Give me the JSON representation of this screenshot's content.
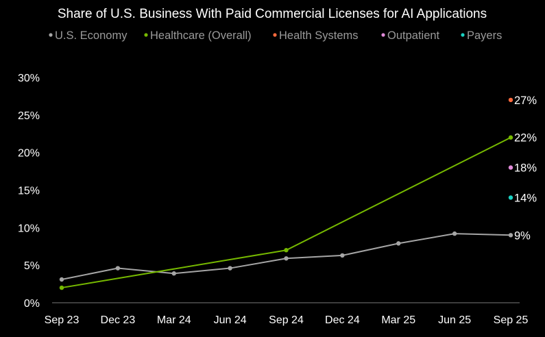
{
  "chart_data": {
    "type": "line",
    "title": "Share of U.S. Business With Paid Commercial Licenses for AI Applications",
    "categories": [
      "Sep 23",
      "Dec 23",
      "Mar 24",
      "Jun 24",
      "Sep 24",
      "Dec 24",
      "Mar 25",
      "Jun 25",
      "Sep 25"
    ],
    "ylim": [
      0,
      30
    ],
    "yticks": [
      0,
      5,
      10,
      15,
      20,
      25,
      30
    ],
    "ytick_labels": [
      "0%",
      "5%",
      "10%",
      "15%",
      "20%",
      "25%",
      "30%"
    ],
    "xlabel": "",
    "ylabel": "",
    "legend_position": "top-left",
    "series": [
      {
        "name": "U.S. Economy",
        "color": "#a6a6a6",
        "x": [
          0,
          1,
          2,
          3,
          4,
          5,
          6,
          7,
          8
        ],
        "values": [
          3.1,
          4.6,
          3.9,
          4.6,
          5.9,
          6.3,
          7.9,
          9.2,
          9
        ],
        "end_label": "9%"
      },
      {
        "name": "Healthcare (Overall)",
        "color": "#76b900",
        "x": [
          0,
          4,
          8
        ],
        "values": [
          2,
          7,
          22
        ],
        "end_label": "22%"
      },
      {
        "name": "Health Systems",
        "color": "#ff6a3d",
        "x": [
          8
        ],
        "values": [
          27
        ],
        "end_label": "27%"
      },
      {
        "name": "Outpatient",
        "color": "#e08ad8",
        "x": [
          8
        ],
        "values": [
          18
        ],
        "end_label": "18%"
      },
      {
        "name": "Payers",
        "color": "#1ad1c1",
        "x": [
          8
        ],
        "values": [
          14
        ],
        "end_label": "14%"
      }
    ]
  }
}
